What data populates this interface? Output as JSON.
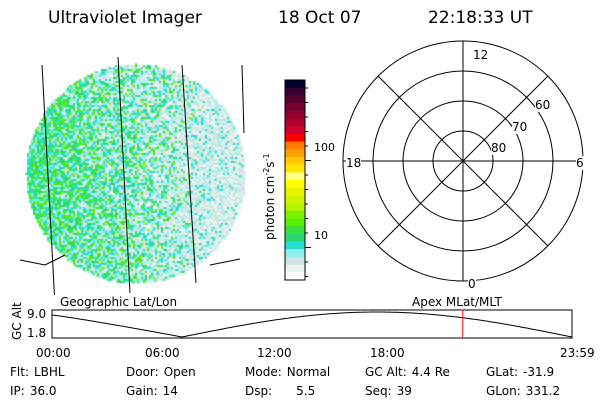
{
  "header": {
    "instrument": "Ultraviolet Imager",
    "date": "18 Oct 07",
    "time": "22:18:33 UT"
  },
  "colorbar": {
    "label": "photon cm",
    "label_sup1": "-2",
    "label_mid": "s",
    "label_sup2": "-1",
    "ticks": [
      "100",
      "10"
    ],
    "scale": "log",
    "colors": [
      "#000030",
      "#380030",
      "#580030",
      "#780030",
      "#900030",
      "#b00030",
      "#d00030",
      "#ff0000",
      "#ff7800",
      "#ffa000",
      "#ffc800",
      "#ffe400",
      "#ffff80",
      "#ffff00",
      "#e8f400",
      "#d0f400",
      "#b4f400",
      "#80f000",
      "#58f000",
      "#38e040",
      "#28d870",
      "#28e0d0",
      "#90f0f0",
      "#d0e4e4",
      "#e8f4ee",
      "#ffffff"
    ]
  },
  "image_panel": {
    "label": "Geographic Lat/Lon"
  },
  "polar_panel": {
    "label": "Apex MLat/MLT",
    "mlt_labels": {
      "top": "12",
      "left": "18",
      "right": "6",
      "bottom": "0"
    },
    "lat_labels": [
      "60",
      "70",
      "80"
    ]
  },
  "altitude_plot": {
    "ylabel": "GC Alt",
    "yticks": [
      "9.0",
      "1.8"
    ],
    "xticks": [
      "00:00",
      "06:00",
      "12:00",
      "18:00",
      "23:59"
    ],
    "current_time_fraction": 0.79,
    "marker_color": "#ff0000"
  },
  "status": [
    {
      "label": "Flt:",
      "value": "LBHL"
    },
    {
      "label": "Door:",
      "value": "Open"
    },
    {
      "label": "Mode:",
      "value": "Normal"
    },
    {
      "label": "GC Alt:",
      "value": "4.4 Re"
    },
    {
      "label": "GLat:",
      "value": "-31.9"
    },
    {
      "label": "IP:",
      "value": "36.0"
    },
    {
      "label": "Gain:",
      "value": "14"
    },
    {
      "label": "Dsp:",
      "value": "5.5"
    },
    {
      "label": "Seq:",
      "value": "39"
    },
    {
      "label": "GLon:",
      "value": "331.2"
    }
  ]
}
